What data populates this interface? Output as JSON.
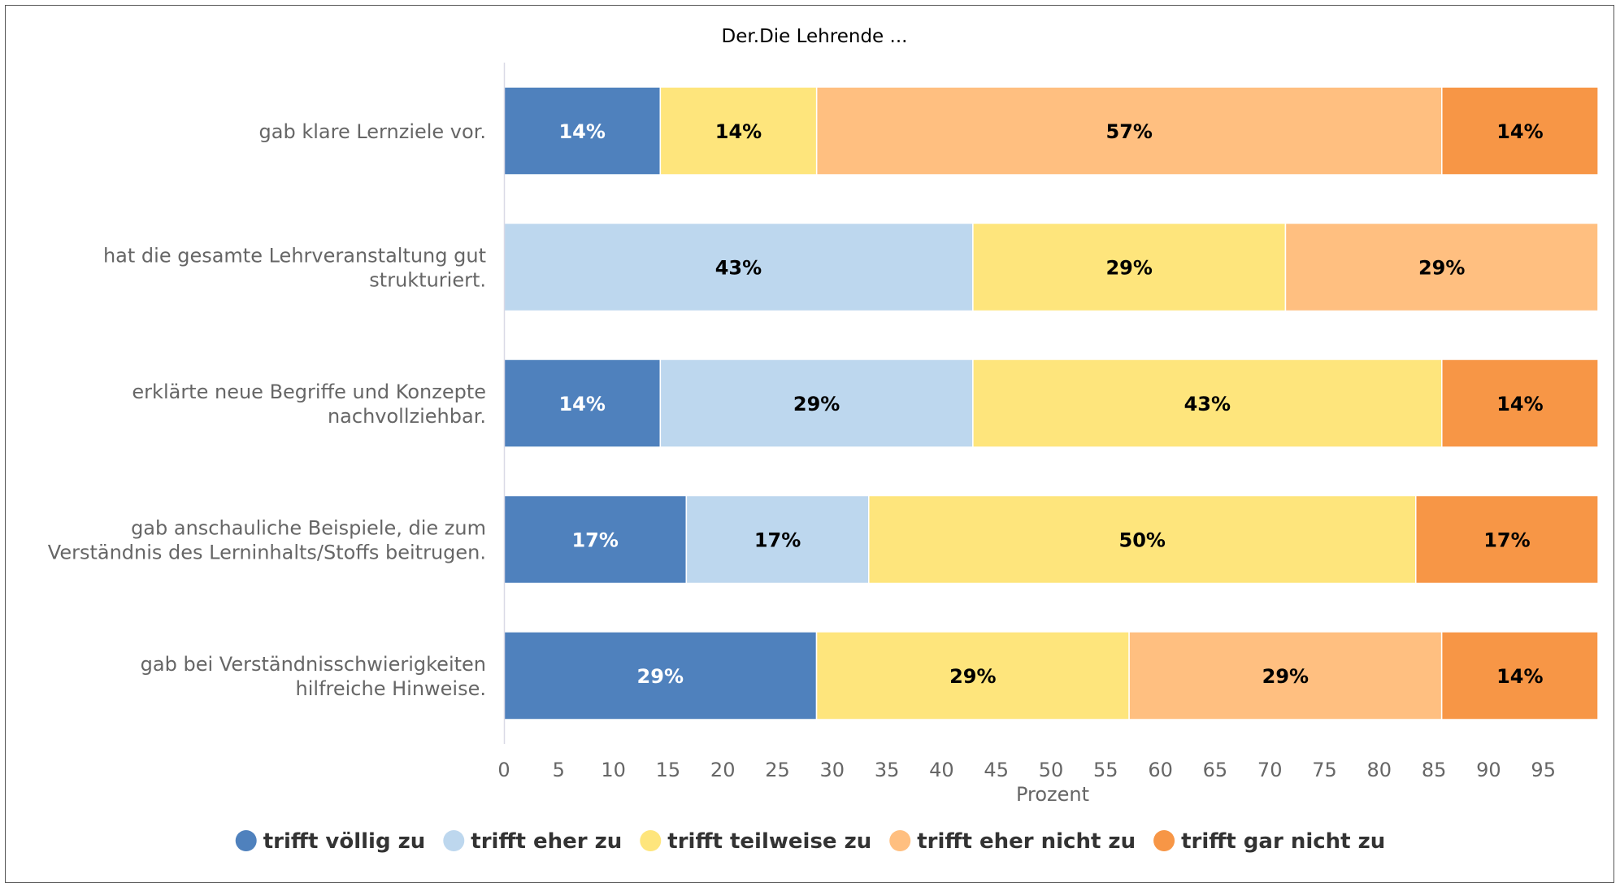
{
  "chart_data": {
    "type": "bar",
    "orientation": "horizontal",
    "stacked": true,
    "title": "Der.Die Lehrende ...",
    "xlabel": "Prozent",
    "ylabel": "",
    "xlim": [
      0,
      100
    ],
    "xticks": [
      0,
      5,
      10,
      15,
      20,
      25,
      30,
      35,
      40,
      45,
      50,
      55,
      60,
      65,
      70,
      75,
      80,
      85,
      90,
      95
    ],
    "grid": false,
    "legend_position": "bottom",
    "categories": [
      [
        "gab klare Lernziele vor."
      ],
      [
        "hat die gesamte Lehrveranstaltung gut",
        "strukturiert."
      ],
      [
        "erklärte neue Begriffe und Konzepte",
        "nachvollziehbar."
      ],
      [
        "gab anschauliche Beispiele, die zum",
        "Verständnis des Lerninhalts/Stoffs beitrugen."
      ],
      [
        "gab bei Verständnisschwierigkeiten",
        "hilfreiche Hinweise."
      ]
    ],
    "series": [
      {
        "name": "trifft völlig zu",
        "color": "#4f81bd",
        "label_color": "#ffffff",
        "values": [
          14.29,
          0,
          14.29,
          16.67,
          28.57
        ],
        "labels": [
          "14%",
          "",
          "14%",
          "17%",
          "29%"
        ]
      },
      {
        "name": "trifft eher zu",
        "color": "#bdd7ee",
        "label_color": "#000000",
        "values": [
          0,
          42.86,
          28.57,
          16.67,
          0
        ],
        "labels": [
          "",
          "43%",
          "29%",
          "17%",
          ""
        ]
      },
      {
        "name": "trifft teilweise zu",
        "color": "#fee57c",
        "label_color": "#000000",
        "values": [
          14.29,
          28.57,
          42.86,
          50.0,
          28.57
        ],
        "labels": [
          "14%",
          "29%",
          "43%",
          "50%",
          "29%"
        ]
      },
      {
        "name": "trifft eher nicht zu",
        "color": "#ffbf80",
        "label_color": "#000000",
        "values": [
          57.14,
          28.57,
          0,
          0,
          28.57
        ],
        "labels": [
          "57%",
          "29%",
          "",
          "",
          "29%"
        ]
      },
      {
        "name": "trifft gar nicht zu",
        "color": "#f79646",
        "label_color": "#000000",
        "values": [
          14.29,
          0,
          14.29,
          16.67,
          14.29
        ],
        "labels": [
          "14%",
          "",
          "14%",
          "17%",
          "14%"
        ]
      }
    ]
  }
}
